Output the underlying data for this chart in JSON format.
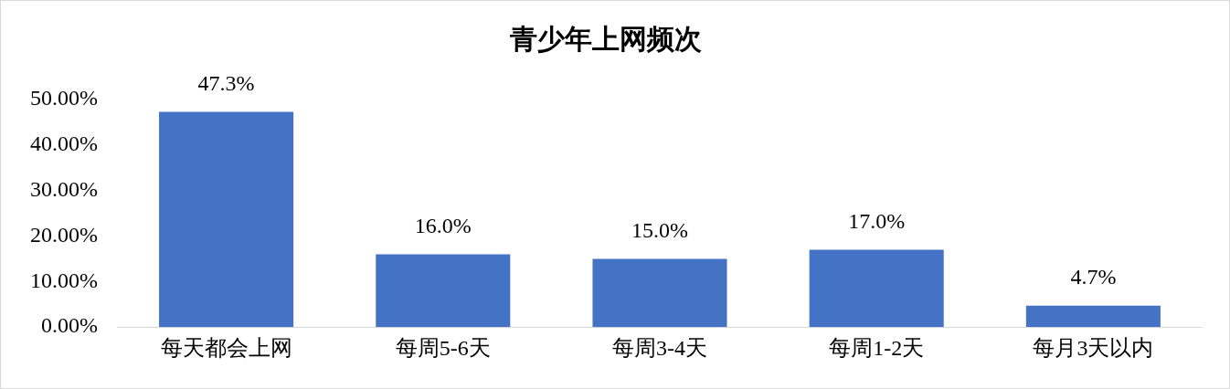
{
  "chart_data": {
    "type": "bar",
    "title": "青少年上网频次",
    "categories": [
      "每天都会上网",
      "每周5-6天",
      "每周3-4天",
      "每周1-2天",
      "每月3天以内"
    ],
    "values": [
      47.3,
      16.0,
      15.0,
      17.0,
      4.7
    ],
    "value_labels": [
      "47.3%",
      "16.0%",
      "15.0%",
      "17.0%",
      "4.7%"
    ],
    "color": "#4472c4",
    "ylim": [
      0,
      50
    ],
    "yticks": [
      {
        "value": 0,
        "label": "0.00%"
      },
      {
        "value": 10,
        "label": "10.00%"
      },
      {
        "value": 20,
        "label": "20.00%"
      },
      {
        "value": 30,
        "label": "30.00%"
      },
      {
        "value": 40,
        "label": "40.00%"
      },
      {
        "value": 50,
        "label": "50.00%"
      }
    ],
    "grid": false,
    "legend": false
  }
}
